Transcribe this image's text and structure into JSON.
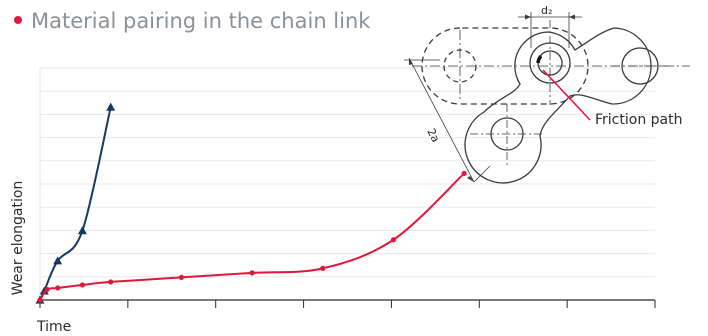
{
  "title": "Material pairing in the chain link",
  "colors": {
    "bullet": "#e4163a",
    "title": "#8c9097",
    "grid": "#e6e8ea",
    "axis": "#2b2b2b",
    "series_a": "#123a63",
    "series_b": "#e4163a",
    "diagram": "#3a3a3a",
    "friction": "#e4163a"
  },
  "diagram": {
    "dimension_top": "d₂",
    "dimension_side": "2a",
    "friction_label": "Friction path"
  },
  "chart_data": {
    "type": "line",
    "title": "Material pairing in the chain link",
    "xlabel": "Time",
    "ylabel": "Wear elongation",
    "grid": true,
    "legend": "none",
    "xlim": [
      0,
      17.4
    ],
    "ylim": [
      0,
      7.7
    ],
    "series": [
      {
        "color": "#123a63",
        "marker": "triangle",
        "x": [
          0,
          0.12,
          0.5,
          1.2,
          2.0
        ],
        "y": [
          0,
          0.3,
          1.3,
          2.3,
          6.4
        ]
      },
      {
        "color": "#e4163a",
        "marker": "dot",
        "x": [
          0,
          0.2,
          0.5,
          1.2,
          2.0,
          4.0,
          6.0,
          8.0,
          10.0,
          12.0
        ],
        "y": [
          0,
          0.35,
          0.4,
          0.5,
          0.6,
          0.75,
          0.9,
          1.05,
          2.0,
          4.2
        ]
      }
    ]
  }
}
